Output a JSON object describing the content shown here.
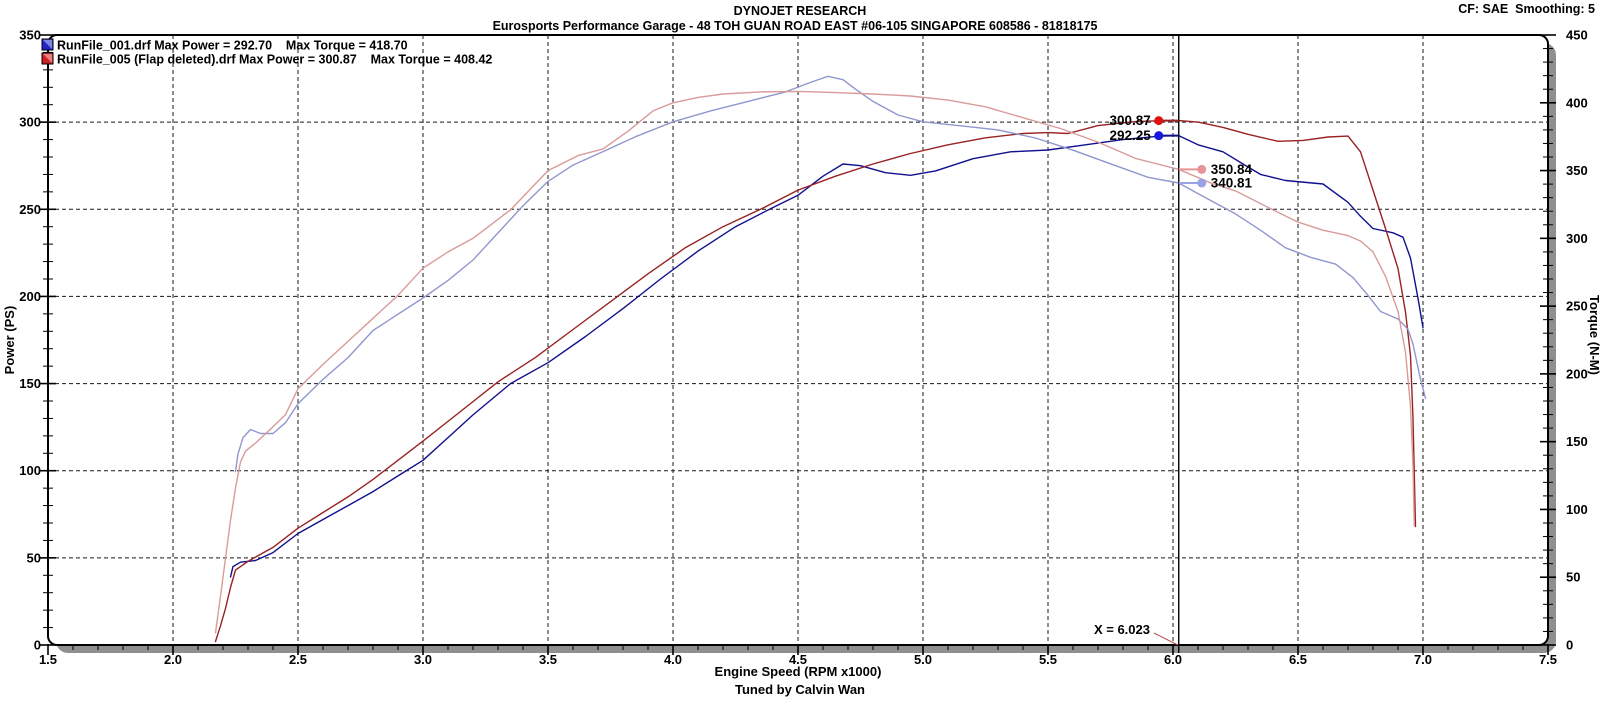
{
  "header": {
    "brand": "DYNOJET RESEARCH",
    "subtitle": "Eurosports Performance Garage - 48 TOH GUAN ROAD EAST #06-105 SINGAPORE 608586 - 81818175",
    "correction": "CF: SAE  Smoothing: 5"
  },
  "footer": {
    "credit": "Tuned by Calvin Wan"
  },
  "chart_data": {
    "type": "line",
    "xlabel": "Engine Speed (RPM x1000)",
    "ylabel_left": "Power (PS)",
    "ylabel_right": "Torque (N-M)",
    "xlim": [
      1.5,
      7.5
    ],
    "ylim_left": [
      0,
      350
    ],
    "ylim_right": [
      0,
      450
    ],
    "x_major_ticks": [
      "1.5",
      "2.0",
      "2.5",
      "3.0",
      "3.5",
      "4.0",
      "4.5",
      "5.0",
      "5.5",
      "6.0",
      "6.5",
      "7.0",
      "7.5"
    ],
    "x_minor_step": 0.1,
    "y_left_ticks": [
      "0",
      "50",
      "100",
      "150",
      "200",
      "250",
      "300",
      "350"
    ],
    "y_right_ticks": [
      "0",
      "50",
      "100",
      "150",
      "200",
      "250",
      "300",
      "350",
      "400",
      "450"
    ],
    "y_minor_step": 10,
    "grid": "black dashed; vertical every 0.5 RPM (2.0-7.0), horizontal every 50 PS (50-300)",
    "legend_position": "top-left inside plot",
    "legend": [
      {
        "display": "RunFile_001.drf Max Power = 292.70    Max Torque = 418.70",
        "file": "RunFile_001.drf",
        "max_power": 292.7,
        "max_torque": 418.7,
        "swatch_dark": "#2424c8",
        "swatch_light": "#7d86e0"
      },
      {
        "display": "RunFile_005 (Flap deleted).drf Max Power = 300.87    Max Torque = 408.42",
        "file": "RunFile_005 (Flap deleted).drf",
        "max_power": 300.87,
        "max_torque": 408.42,
        "swatch_dark": "#cc2222",
        "swatch_light": "#ee8080"
      }
    ],
    "cursor": {
      "x": 6.023,
      "label": "X = 6.023",
      "pointer_color": "#b05050",
      "readouts": [
        {
          "label": "300.87",
          "value": 300.87,
          "axis": "left",
          "side": "left",
          "dot_color": "#dd1111",
          "line_color": "#992222"
        },
        {
          "label": "292.25",
          "value": 292.25,
          "axis": "left",
          "side": "left",
          "dot_color": "#1818dd",
          "line_color": "#10108f"
        },
        {
          "label": "350.84",
          "value": 350.84,
          "axis": "right",
          "side": "right",
          "dot_color": "#e89494",
          "line_color": "#e89494"
        },
        {
          "label": "340.81",
          "value": 340.81,
          "axis": "right",
          "side": "right",
          "dot_color": "#9aa2e6",
          "line_color": "#9aa2e6"
        }
      ]
    },
    "series": [
      {
        "name": "runfile-001-power",
        "unit": "PS",
        "axis": "left",
        "color": "#10108f",
        "points": [
          [
            2.23,
            39
          ],
          [
            2.24,
            45
          ],
          [
            2.27,
            47.5
          ],
          [
            2.33,
            48.5
          ],
          [
            2.4,
            53
          ],
          [
            2.5,
            64
          ],
          [
            2.6,
            72
          ],
          [
            2.7,
            80
          ],
          [
            2.8,
            88
          ],
          [
            2.9,
            97
          ],
          [
            3.0,
            106
          ],
          [
            3.1,
            119
          ],
          [
            3.2,
            132
          ],
          [
            3.35,
            150
          ],
          [
            3.5,
            162
          ],
          [
            3.65,
            177
          ],
          [
            3.8,
            193
          ],
          [
            3.95,
            210
          ],
          [
            4.1,
            226
          ],
          [
            4.25,
            240
          ],
          [
            4.4,
            251
          ],
          [
            4.5,
            258
          ],
          [
            4.6,
            269
          ],
          [
            4.68,
            276
          ],
          [
            4.75,
            275
          ],
          [
            4.85,
            271
          ],
          [
            4.95,
            269.5
          ],
          [
            5.05,
            272
          ],
          [
            5.2,
            279
          ],
          [
            5.35,
            283
          ],
          [
            5.5,
            284
          ],
          [
            5.65,
            287
          ],
          [
            5.8,
            290
          ],
          [
            5.95,
            292
          ],
          [
            6.023,
            292.25
          ],
          [
            6.1,
            287
          ],
          [
            6.2,
            283
          ],
          [
            6.28,
            276
          ],
          [
            6.35,
            270
          ],
          [
            6.45,
            266.5
          ],
          [
            6.6,
            264.5
          ],
          [
            6.7,
            254
          ],
          [
            6.75,
            246
          ],
          [
            6.8,
            239
          ],
          [
            6.88,
            236.5
          ],
          [
            6.92,
            234
          ],
          [
            6.95,
            222
          ],
          [
            6.98,
            199
          ],
          [
            7.0,
            182
          ]
        ]
      },
      {
        "name": "runfile-005-power",
        "unit": "PS",
        "axis": "left",
        "color": "#992222",
        "points": [
          [
            2.17,
            2
          ],
          [
            2.19,
            11
          ],
          [
            2.21,
            21
          ],
          [
            2.23,
            33
          ],
          [
            2.25,
            43
          ],
          [
            2.3,
            48
          ],
          [
            2.4,
            56
          ],
          [
            2.5,
            67
          ],
          [
            2.6,
            76
          ],
          [
            2.7,
            85
          ],
          [
            2.8,
            95
          ],
          [
            2.9,
            106
          ],
          [
            3.0,
            117
          ],
          [
            3.15,
            134
          ],
          [
            3.3,
            151
          ],
          [
            3.45,
            165
          ],
          [
            3.6,
            181
          ],
          [
            3.75,
            197
          ],
          [
            3.9,
            213
          ],
          [
            4.05,
            228
          ],
          [
            4.2,
            240
          ],
          [
            4.35,
            250
          ],
          [
            4.5,
            261
          ],
          [
            4.65,
            269
          ],
          [
            4.8,
            276
          ],
          [
            4.95,
            282
          ],
          [
            5.1,
            287
          ],
          [
            5.25,
            291
          ],
          [
            5.4,
            293.5
          ],
          [
            5.5,
            294
          ],
          [
            5.58,
            293.5
          ],
          [
            5.7,
            298
          ],
          [
            5.85,
            300.3
          ],
          [
            5.95,
            300.8
          ],
          [
            6.023,
            300.87
          ],
          [
            6.1,
            300
          ],
          [
            6.2,
            297
          ],
          [
            6.3,
            293
          ],
          [
            6.42,
            289
          ],
          [
            6.52,
            289.5
          ],
          [
            6.62,
            291.5
          ],
          [
            6.7,
            292
          ],
          [
            6.75,
            283
          ],
          [
            6.8,
            261
          ],
          [
            6.85,
            239
          ],
          [
            6.9,
            216
          ],
          [
            6.93,
            191
          ],
          [
            6.95,
            166
          ],
          [
            6.96,
            130
          ],
          [
            6.97,
            68
          ]
        ]
      },
      {
        "name": "runfile-001-torque",
        "unit": "N-M",
        "axis": "right",
        "color": "#8f97ce",
        "points": [
          [
            2.25,
            128
          ],
          [
            2.26,
            141
          ],
          [
            2.28,
            153
          ],
          [
            2.31,
            159
          ],
          [
            2.35,
            156
          ],
          [
            2.4,
            156
          ],
          [
            2.45,
            164
          ],
          [
            2.5,
            178
          ],
          [
            2.6,
            196
          ],
          [
            2.7,
            212
          ],
          [
            2.8,
            232
          ],
          [
            2.9,
            244
          ],
          [
            3.0,
            256
          ],
          [
            3.1,
            269
          ],
          [
            3.2,
            284
          ],
          [
            3.3,
            304
          ],
          [
            3.4,
            324
          ],
          [
            3.5,
            342
          ],
          [
            3.6,
            354
          ],
          [
            3.72,
            364
          ],
          [
            3.85,
            375
          ],
          [
            4.0,
            386
          ],
          [
            4.15,
            394
          ],
          [
            4.3,
            401
          ],
          [
            4.45,
            408
          ],
          [
            4.55,
            415
          ],
          [
            4.62,
            419.5
          ],
          [
            4.68,
            417
          ],
          [
            4.73,
            410
          ],
          [
            4.8,
            401
          ],
          [
            4.9,
            391
          ],
          [
            5.0,
            386
          ],
          [
            5.15,
            383
          ],
          [
            5.3,
            380
          ],
          [
            5.45,
            374
          ],
          [
            5.6,
            365
          ],
          [
            5.75,
            355
          ],
          [
            5.9,
            345
          ],
          [
            6.023,
            340.81
          ],
          [
            6.1,
            333
          ],
          [
            6.25,
            318
          ],
          [
            6.35,
            306
          ],
          [
            6.45,
            293
          ],
          [
            6.55,
            286
          ],
          [
            6.65,
            281
          ],
          [
            6.72,
            271
          ],
          [
            6.78,
            258
          ],
          [
            6.83,
            246
          ],
          [
            6.9,
            240.5
          ],
          [
            6.94,
            233
          ],
          [
            6.96,
            222
          ],
          [
            6.99,
            196
          ],
          [
            7.01,
            182
          ]
        ]
      },
      {
        "name": "runfile-005-torque",
        "unit": "N-M",
        "axis": "right",
        "color": "#d99a9a",
        "points": [
          [
            2.17,
            9
          ],
          [
            2.19,
            36
          ],
          [
            2.21,
            64
          ],
          [
            2.23,
            92
          ],
          [
            2.25,
            116
          ],
          [
            2.27,
            135
          ],
          [
            2.29,
            143
          ],
          [
            2.33,
            149
          ],
          [
            2.4,
            161
          ],
          [
            2.45,
            170
          ],
          [
            2.5,
            189
          ],
          [
            2.6,
            207
          ],
          [
            2.7,
            224
          ],
          [
            2.8,
            241
          ],
          [
            2.9,
            258
          ],
          [
            3.0,
            278
          ],
          [
            3.1,
            290
          ],
          [
            3.2,
            300
          ],
          [
            3.35,
            321
          ],
          [
            3.5,
            350
          ],
          [
            3.62,
            361
          ],
          [
            3.72,
            366
          ],
          [
            3.82,
            379
          ],
          [
            3.92,
            394
          ],
          [
            4.0,
            400
          ],
          [
            4.1,
            404
          ],
          [
            4.2,
            406.5
          ],
          [
            4.35,
            408
          ],
          [
            4.5,
            408.4
          ],
          [
            4.65,
            407.5
          ],
          [
            4.8,
            406.5
          ],
          [
            4.95,
            405
          ],
          [
            5.1,
            402
          ],
          [
            5.25,
            397
          ],
          [
            5.4,
            389
          ],
          [
            5.55,
            381
          ],
          [
            5.7,
            371
          ],
          [
            5.85,
            359
          ],
          [
            6.023,
            350.84
          ],
          [
            6.15,
            341
          ],
          [
            6.25,
            335
          ],
          [
            6.4,
            321
          ],
          [
            6.5,
            312
          ],
          [
            6.6,
            306
          ],
          [
            6.7,
            302
          ],
          [
            6.75,
            298
          ],
          [
            6.8,
            290
          ],
          [
            6.85,
            272
          ],
          [
            6.9,
            246
          ],
          [
            6.93,
            216
          ],
          [
            6.95,
            176
          ],
          [
            6.96,
            132
          ],
          [
            6.965,
            88
          ]
        ]
      }
    ]
  }
}
